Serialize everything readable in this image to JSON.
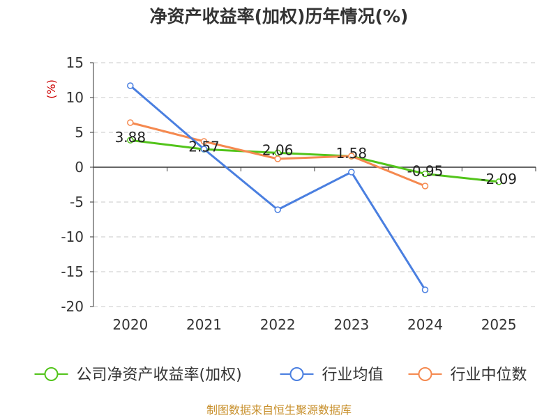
{
  "chart_data": {
    "type": "line",
    "title": "净资产收益率(加权)历年情况(%)",
    "ylabel": "(%)",
    "xlabel": "",
    "categories": [
      "2020",
      "2021",
      "2022",
      "2023",
      "2024",
      "2025"
    ],
    "ylim": [
      -20,
      15
    ],
    "yticks": [
      15,
      10,
      5,
      0,
      -5,
      -10,
      -15,
      -20
    ],
    "grid": true,
    "legend_position": "bottom",
    "series": [
      {
        "name": "公司净资产收益率(加权)",
        "color": "#52c41a",
        "values": [
          3.88,
          2.57,
          2.06,
          1.58,
          -0.95,
          -2.09
        ],
        "labels": [
          "3.88",
          "2.57",
          "2.06",
          "1.58",
          "-0.95",
          "-2.09"
        ]
      },
      {
        "name": "行业均值",
        "color": "#4a7fe0",
        "values": [
          11.7,
          2.6,
          -6.1,
          -0.7,
          -17.6,
          null
        ]
      },
      {
        "name": "行业中位数",
        "color": "#f5894f",
        "values": [
          6.4,
          3.7,
          1.2,
          1.6,
          -2.7,
          null
        ]
      }
    ],
    "source": "制图数据来自恒生聚源数据库"
  }
}
